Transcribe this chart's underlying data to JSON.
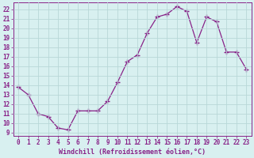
{
  "x": [
    0,
    1,
    2,
    3,
    4,
    5,
    6,
    7,
    8,
    9,
    10,
    11,
    12,
    13,
    14,
    15,
    16,
    17,
    18,
    19,
    20,
    21,
    22,
    23
  ],
  "y": [
    13.8,
    13.0,
    11.0,
    10.7,
    9.5,
    9.3,
    11.3,
    11.3,
    11.3,
    12.3,
    14.3,
    16.5,
    17.2,
    19.5,
    21.2,
    21.5,
    22.3,
    21.8,
    18.5,
    21.2,
    20.7,
    17.5,
    17.5,
    15.7
  ],
  "line_color": "#882288",
  "marker": "+",
  "markersize": 4,
  "linewidth": 0.9,
  "bg_color": "#d8f0f0",
  "grid_color": "#b8d8d8",
  "xlabel": "Windchill (Refroidissement éolien,°C)",
  "xlim": [
    -0.5,
    23.5
  ],
  "ylim": [
    8.7,
    22.7
  ],
  "yticks": [
    9,
    10,
    11,
    12,
    13,
    14,
    15,
    16,
    17,
    18,
    19,
    20,
    21,
    22
  ],
  "xticks": [
    0,
    1,
    2,
    3,
    4,
    5,
    6,
    7,
    8,
    9,
    10,
    11,
    12,
    13,
    14,
    15,
    16,
    17,
    18,
    19,
    20,
    21,
    22,
    23
  ],
  "tick_fontsize": 5.5,
  "xlabel_fontsize": 6.0
}
